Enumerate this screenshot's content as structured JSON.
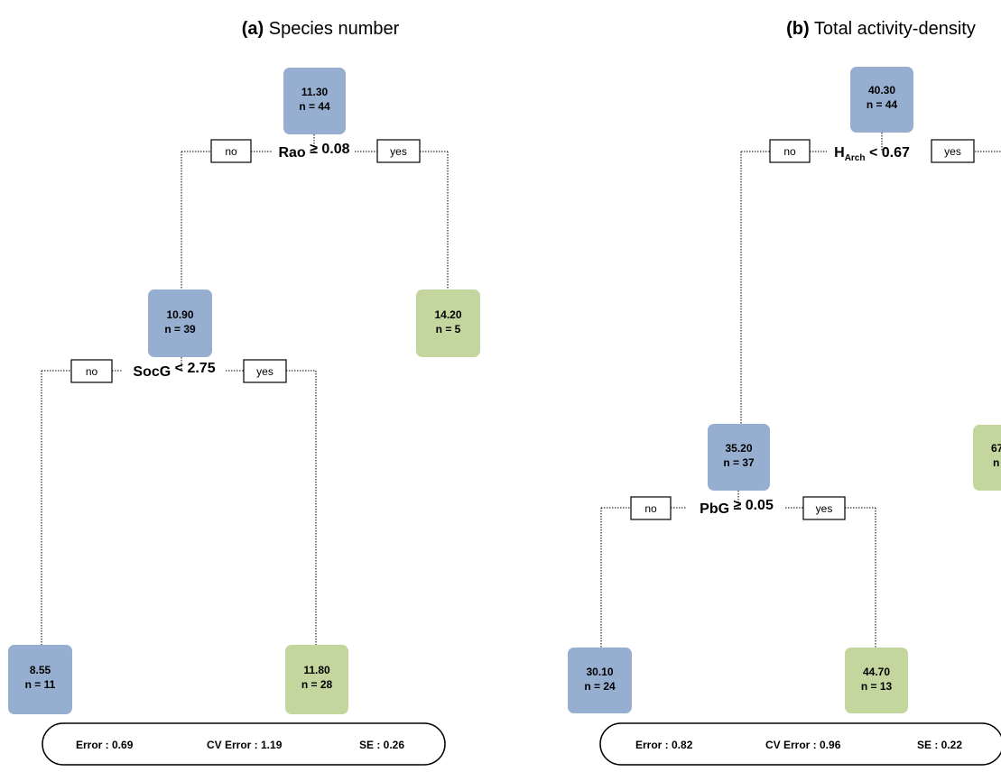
{
  "colors": {
    "node_no": "#96aecf",
    "node_yes": "#c2d69e"
  },
  "panels": [
    {
      "title_bold": "(a)",
      "title": " Species number",
      "nodes": [
        {
          "value": "11.30",
          "n": "n = 44",
          "color": "blue"
        },
        {
          "value": "10.90",
          "n": "n = 39",
          "color": "blue"
        },
        {
          "value": "14.20",
          "n": "n = 5",
          "color": "green"
        },
        {
          "value": "8.55",
          "n": "n = 11",
          "color": "blue"
        },
        {
          "value": "11.80",
          "n": "n = 28",
          "color": "green"
        }
      ],
      "splits": [
        {
          "var": "Rao",
          "sub": "",
          "op": "≥ 0.08",
          "no": "no",
          "yes": "yes"
        },
        {
          "var": "SocG",
          "sub": "",
          "op": "< 2.75",
          "no": "no",
          "yes": "yes"
        }
      ],
      "error": {
        "error": "Error : 0.69",
        "cv": "CV Error : 1.19",
        "se": "SE : 0.26"
      }
    },
    {
      "title_bold": "(b)",
      "title": " Total activity-density",
      "nodes": [
        {
          "value": "40.30",
          "n": "n = 44",
          "color": "blue"
        },
        {
          "value": "35.20",
          "n": "n = 37",
          "color": "blue"
        },
        {
          "value": "67",
          "n": "n",
          "color": "green"
        },
        {
          "value": "30.10",
          "n": "n = 24",
          "color": "blue"
        },
        {
          "value": "44.70",
          "n": "n = 13",
          "color": "green"
        }
      ],
      "splits": [
        {
          "var": "H",
          "sub": "Arch",
          "op": "< 0.67",
          "no": "no",
          "yes": "yes"
        },
        {
          "var": "PbG",
          "sub": "",
          "op": "≥ 0.05",
          "no": "no",
          "yes": "yes"
        }
      ],
      "error": {
        "error": "Error : 0.82",
        "cv": "CV Error : 0.96",
        "se": "SE : 0.22"
      }
    }
  ]
}
